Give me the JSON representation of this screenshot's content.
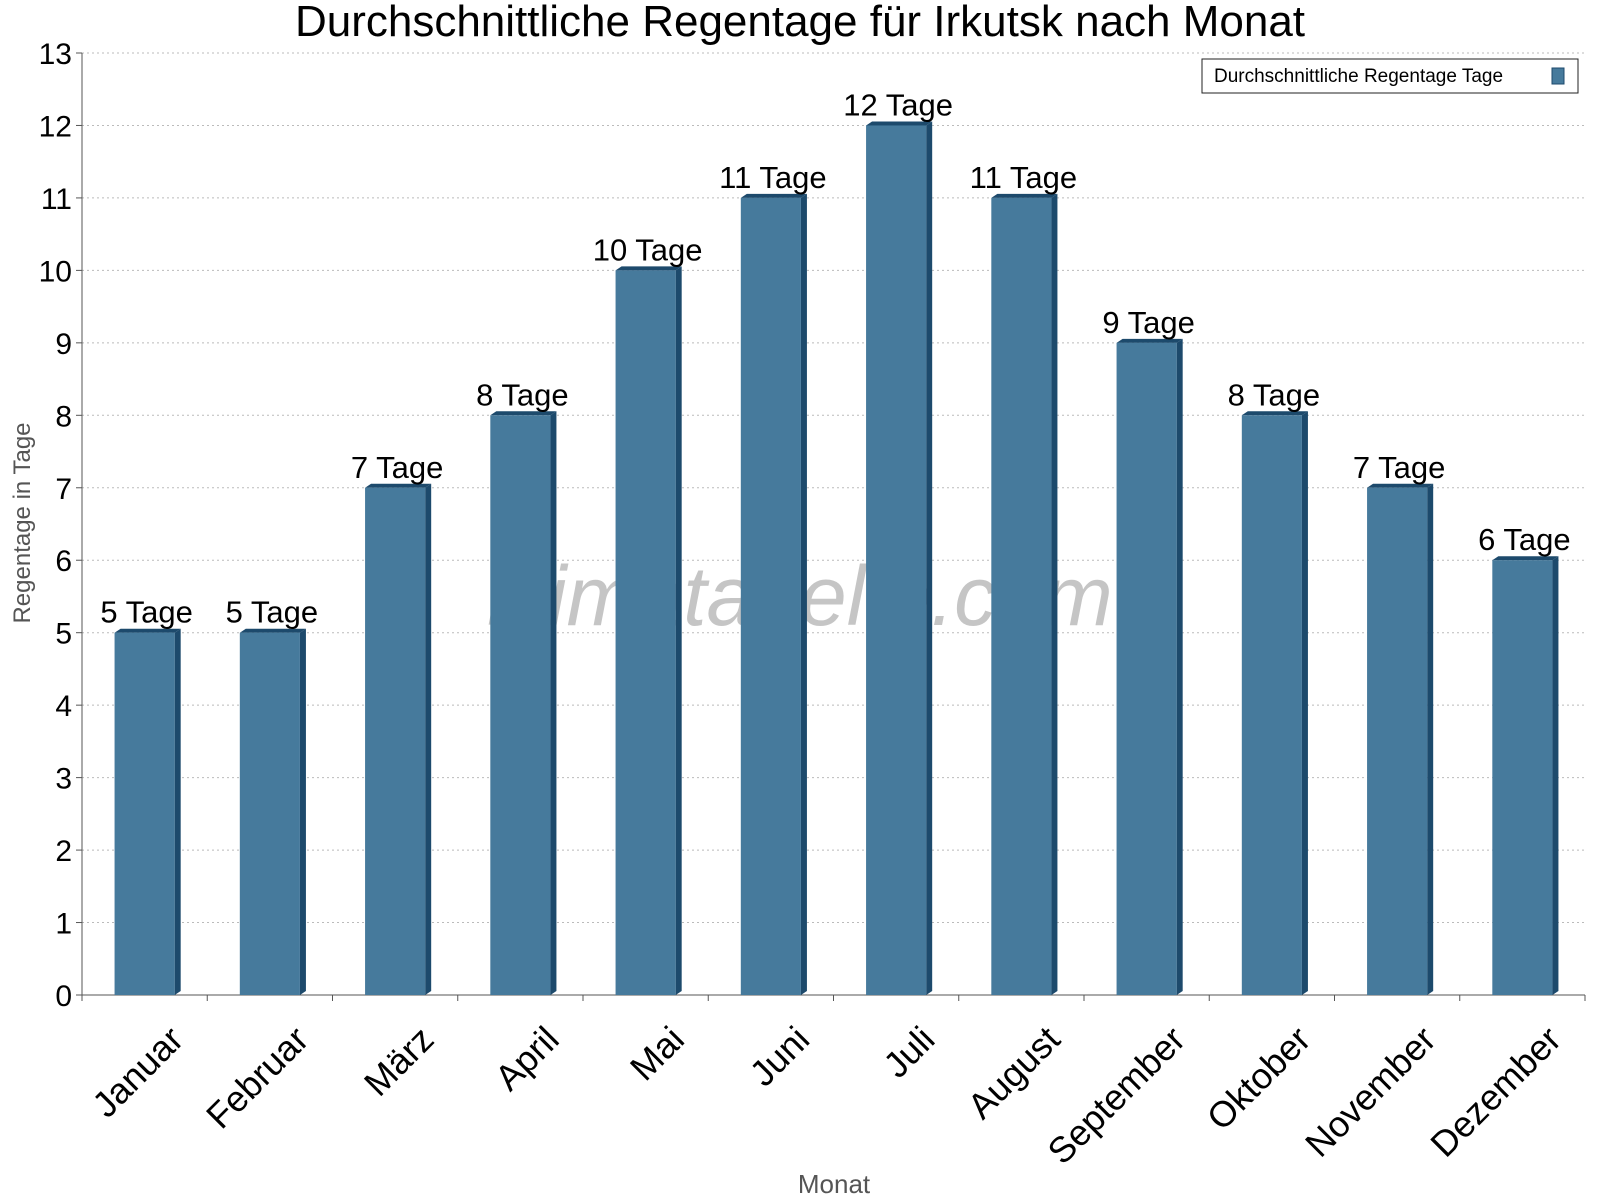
{
  "chart_data": {
    "type": "bar",
    "title": "Durchschnittliche Regentage für Irkutsk nach Monat",
    "x_label": "Monat",
    "y_label": "Regentage in Tage",
    "watermark": "klimatabelle.com",
    "categories": [
      "Januar",
      "Februar",
      "März",
      "April",
      "Mai",
      "Juni",
      "Juli",
      "August",
      "September",
      "Oktober",
      "November",
      "Dezember"
    ],
    "series": [
      {
        "name": "Durchschnittliche Regentage Tage",
        "color": "#467a9c",
        "values": [
          5,
          5,
          7,
          8,
          10,
          11,
          12,
          11,
          9,
          8,
          7,
          6
        ],
        "value_labels": [
          "5 Tage",
          "5 Tage",
          "7 Tage",
          "8 Tage",
          "10 Tage",
          "11 Tage",
          "12 Tage",
          "11 Tage",
          "9 Tage",
          "8 Tage",
          "7 Tage",
          "6 Tage"
        ]
      }
    ],
    "ylim": [
      0,
      13
    ],
    "yticks": [
      0,
      1,
      2,
      3,
      4,
      5,
      6,
      7,
      8,
      9,
      10,
      11,
      12,
      13
    ],
    "grid": true,
    "legend": "top-right"
  }
}
